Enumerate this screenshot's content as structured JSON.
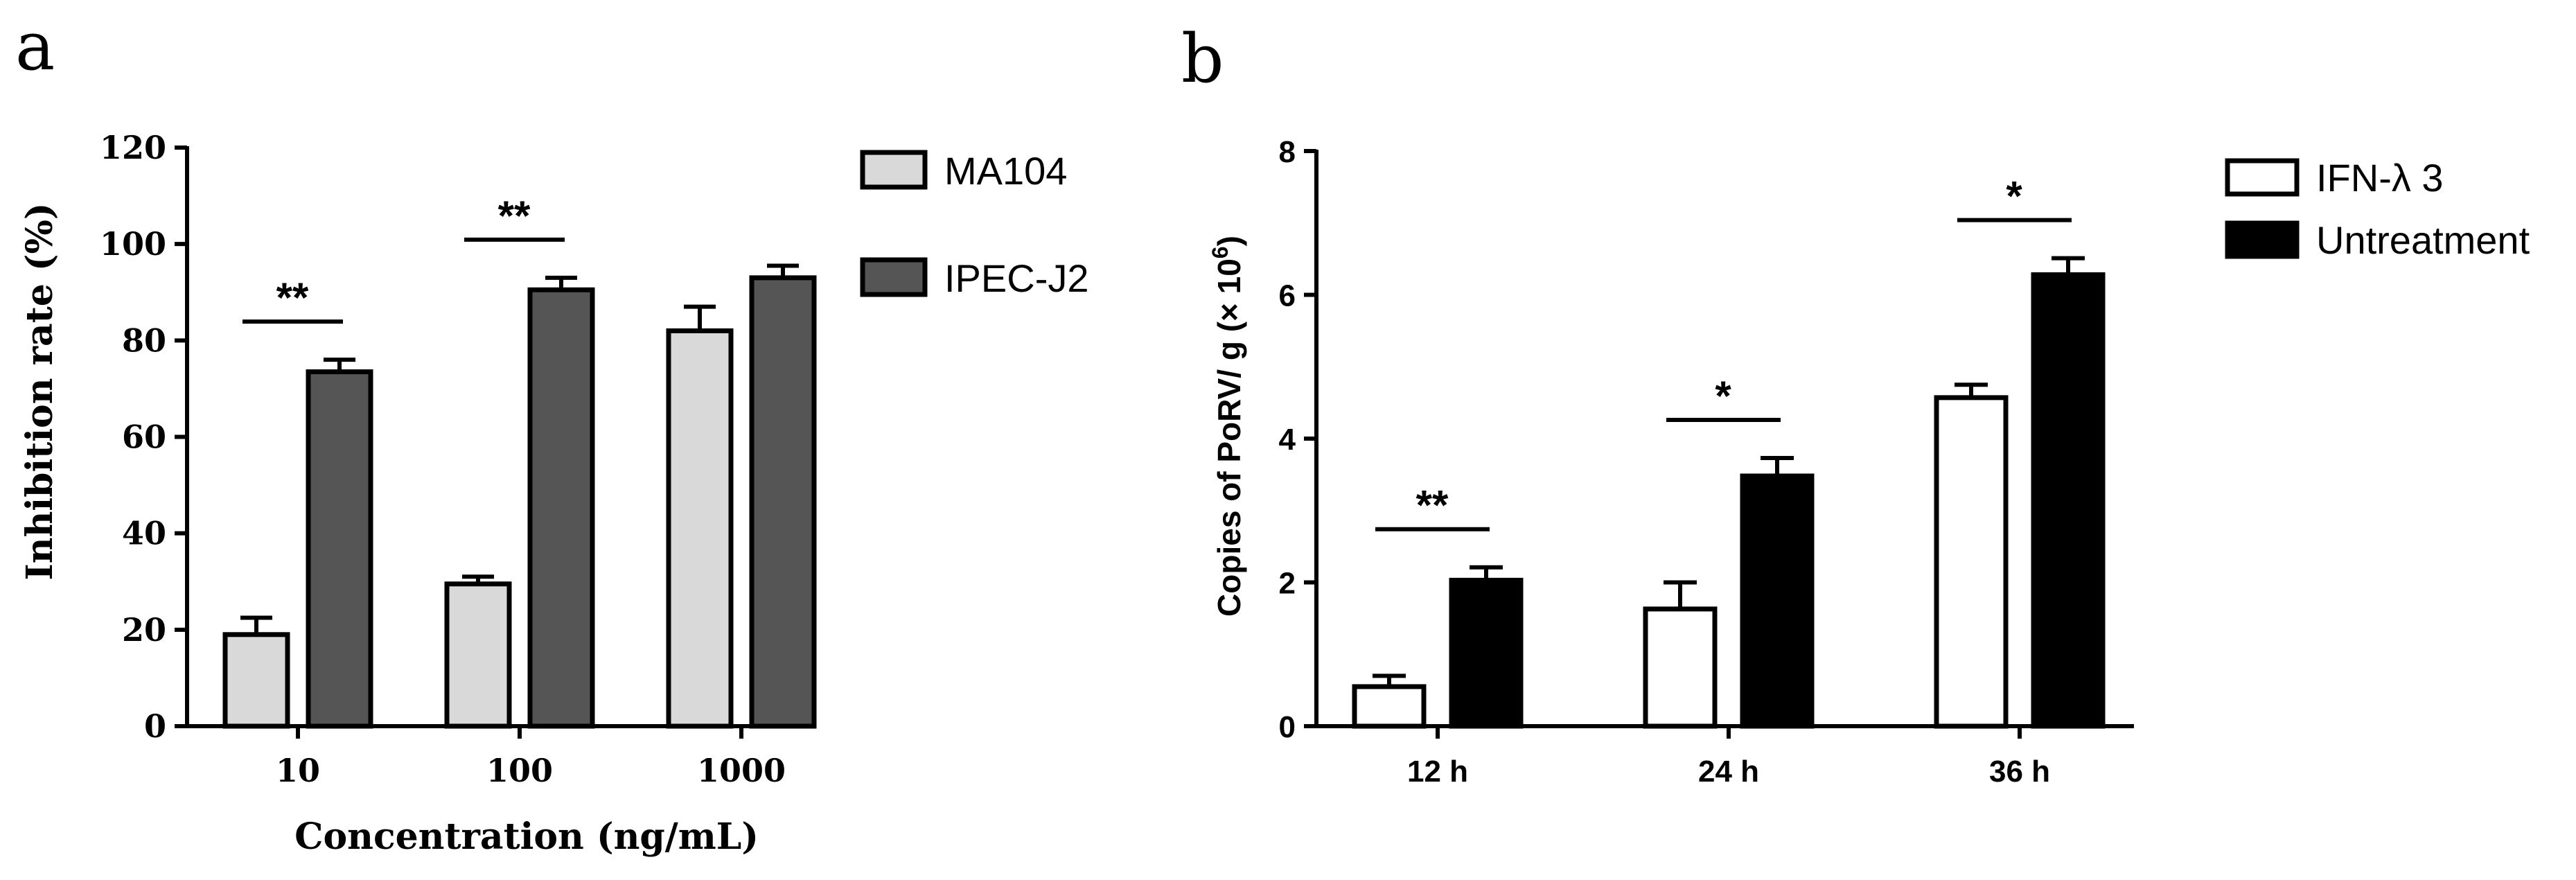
{
  "panels": {
    "a": {
      "letter": "a"
    },
    "b": {
      "letter": "b"
    }
  },
  "chart_data": [
    {
      "type": "bar",
      "panel": "a",
      "categories": [
        "10",
        "100",
        "1000"
      ],
      "series": [
        {
          "name": "MA104",
          "color": "#d9d9d9",
          "values": [
            19,
            29.5,
            82
          ],
          "errors": [
            3.5,
            1.5,
            5
          ]
        },
        {
          "name": "IPEC-J2",
          "color": "#555555",
          "values": [
            73.5,
            90.5,
            93
          ],
          "errors": [
            2.5,
            2.5,
            2.5
          ]
        }
      ],
      "xlabel": "Concentration (ng/mL)",
      "ylabel": "Inhibition rate (%)",
      "ylim": [
        0,
        120
      ],
      "yticks": [
        "0",
        "20",
        "40",
        "60",
        "80",
        "100",
        "120"
      ],
      "significance": [
        "**",
        "**",
        ""
      ],
      "legend": "right",
      "grid": false
    },
    {
      "type": "bar",
      "panel": "b",
      "categories": [
        "12 h",
        "24 h",
        "36 h"
      ],
      "series": [
        {
          "name": "IFN-λ 3",
          "color": "#ffffff",
          "values": [
            0.55,
            1.63,
            4.57
          ],
          "errors": [
            0.15,
            0.37,
            0.18
          ]
        },
        {
          "name": "Untreatment",
          "color": "#000000",
          "values": [
            2.03,
            3.48,
            6.28
          ],
          "errors": [
            0.18,
            0.25,
            0.23
          ]
        }
      ],
      "xlabel": "",
      "ylabel": "Copies of PoRV/ g (× 10",
      "ylabel_sup": "6",
      "ylabel_end": ")",
      "ylim": [
        0,
        8
      ],
      "yticks": [
        "0",
        "2",
        "4",
        "6",
        "8"
      ],
      "significance": [
        "**",
        "*",
        "*"
      ],
      "legend": "right",
      "grid": false
    }
  ]
}
